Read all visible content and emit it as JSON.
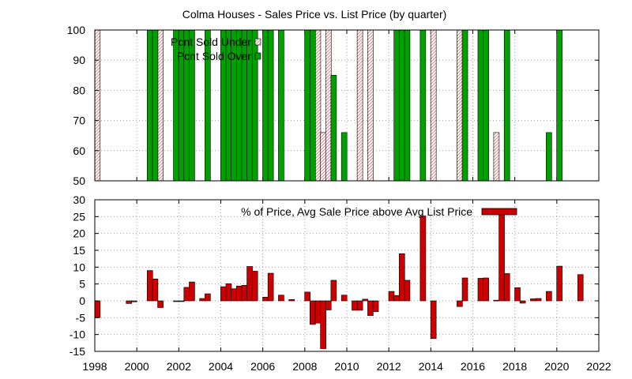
{
  "figure_title": "Colma Houses - Sales Price vs. List Price (by quarter)",
  "colors": {
    "green": "#00a000",
    "red": "#cc0000",
    "pink_hatch": "#e08080",
    "frame": "#000000",
    "grid": "#a0a0a0"
  },
  "chart_data": [
    {
      "type": "bar",
      "title": "Colma Houses - Sales Price vs. List Price (by quarter)",
      "xlim": [
        1998,
        2022
      ],
      "ylim": [
        50,
        100
      ],
      "grid": true,
      "legend_position": "top-left",
      "x_ticks": [],
      "y_ticks": [
        50,
        60,
        70,
        80,
        90,
        100
      ],
      "series": [
        {
          "name": "Pcnt Sold Under",
          "style": "hatched-pink",
          "bars": [
            {
              "x": 1998.125,
              "value": 100
            },
            {
              "x": 2001.125,
              "value": 100
            },
            {
              "x": 2008.625,
              "value": 100
            },
            {
              "x": 2008.875,
              "value": 66
            },
            {
              "x": 2009.125,
              "value": 100
            },
            {
              "x": 2010.625,
              "value": 100
            },
            {
              "x": 2011.125,
              "value": 100
            },
            {
              "x": 2014.125,
              "value": 100
            },
            {
              "x": 2015.375,
              "value": 100
            },
            {
              "x": 2017.125,
              "value": 66
            }
          ]
        },
        {
          "name": "Pcnt Sold Over",
          "style": "solid-green",
          "bars": [
            {
              "x": 2000.625,
              "value": 100
            },
            {
              "x": 2000.875,
              "value": 100
            },
            {
              "x": 2001.875,
              "value": 100
            },
            {
              "x": 2002.125,
              "value": 100
            },
            {
              "x": 2002.375,
              "value": 100
            },
            {
              "x": 2002.625,
              "value": 100
            },
            {
              "x": 2003.375,
              "value": 100
            },
            {
              "x": 2004.125,
              "value": 100
            },
            {
              "x": 2004.375,
              "value": 100
            },
            {
              "x": 2004.625,
              "value": 100
            },
            {
              "x": 2004.875,
              "value": 100
            },
            {
              "x": 2005.125,
              "value": 100
            },
            {
              "x": 2005.375,
              "value": 100
            },
            {
              "x": 2005.625,
              "value": 100
            },
            {
              "x": 2006.125,
              "value": 100
            },
            {
              "x": 2006.375,
              "value": 100
            },
            {
              "x": 2006.875,
              "value": 100
            },
            {
              "x": 2008.125,
              "value": 100
            },
            {
              "x": 2008.375,
              "value": 100
            },
            {
              "x": 2009.375,
              "value": 85
            },
            {
              "x": 2009.875,
              "value": 66
            },
            {
              "x": 2012.375,
              "value": 100
            },
            {
              "x": 2012.625,
              "value": 100
            },
            {
              "x": 2012.875,
              "value": 100
            },
            {
              "x": 2013.625,
              "value": 100
            },
            {
              "x": 2015.625,
              "value": 100
            },
            {
              "x": 2016.375,
              "value": 100
            },
            {
              "x": 2016.625,
              "value": 100
            },
            {
              "x": 2017.625,
              "value": 100
            },
            {
              "x": 2019.625,
              "value": 66
            },
            {
              "x": 2020.125,
              "value": 100
            }
          ]
        }
      ]
    },
    {
      "type": "bar",
      "title": "",
      "xlim": [
        1998,
        2022
      ],
      "ylim": [
        -15,
        30
      ],
      "grid": true,
      "legend_position": "top-right",
      "x_ticks": [
        1998,
        2000,
        2002,
        2004,
        2006,
        2008,
        2010,
        2012,
        2014,
        2016,
        2018,
        2020,
        2022
      ],
      "y_ticks": [
        -15,
        -10,
        -5,
        0,
        5,
        10,
        15,
        20,
        25,
        30
      ],
      "series": [
        {
          "name": "% of Price, Avg Sale Price above Avg List Price",
          "style": "solid-red",
          "bars": [
            {
              "x": 1998.125,
              "value": -5
            },
            {
              "x": 1999.625,
              "value": -0.8
            },
            {
              "x": 1999.875,
              "value": -0.3
            },
            {
              "x": 2000.625,
              "value": 9
            },
            {
              "x": 2000.875,
              "value": 6.5
            },
            {
              "x": 2001.125,
              "value": -2
            },
            {
              "x": 2001.875,
              "value": -0.2
            },
            {
              "x": 2002.125,
              "value": -0.2
            },
            {
              "x": 2002.375,
              "value": 4
            },
            {
              "x": 2002.625,
              "value": 5.6
            },
            {
              "x": 2003.125,
              "value": 0.7
            },
            {
              "x": 2003.375,
              "value": 2.1
            },
            {
              "x": 2004.125,
              "value": 4.2
            },
            {
              "x": 2004.375,
              "value": 5.1
            },
            {
              "x": 2004.625,
              "value": 3.6
            },
            {
              "x": 2004.875,
              "value": 4.4
            },
            {
              "x": 2005.125,
              "value": 4.6
            },
            {
              "x": 2005.375,
              "value": 10.2
            },
            {
              "x": 2005.625,
              "value": 8.8
            },
            {
              "x": 2006.125,
              "value": 1.1
            },
            {
              "x": 2006.375,
              "value": 8.2
            },
            {
              "x": 2006.875,
              "value": 1.7
            },
            {
              "x": 2007.375,
              "value": 0.4
            },
            {
              "x": 2008.125,
              "value": 2.6
            },
            {
              "x": 2008.375,
              "value": -7
            },
            {
              "x": 2008.625,
              "value": -6.6
            },
            {
              "x": 2008.875,
              "value": -14.2
            },
            {
              "x": 2009.125,
              "value": -2.7
            },
            {
              "x": 2009.375,
              "value": 6.1
            },
            {
              "x": 2009.875,
              "value": 1.7
            },
            {
              "x": 2010.375,
              "value": -2.8
            },
            {
              "x": 2010.625,
              "value": -2.8
            },
            {
              "x": 2010.875,
              "value": 0.5
            },
            {
              "x": 2011.125,
              "value": -4.4
            },
            {
              "x": 2011.375,
              "value": -3.2
            },
            {
              "x": 2012.125,
              "value": 2.8
            },
            {
              "x": 2012.375,
              "value": 1.6
            },
            {
              "x": 2012.625,
              "value": 14
            },
            {
              "x": 2012.875,
              "value": 6.1
            },
            {
              "x": 2013.625,
              "value": 25.2
            },
            {
              "x": 2014.125,
              "value": -11.2
            },
            {
              "x": 2015.375,
              "value": -1.7
            },
            {
              "x": 2015.625,
              "value": 6.8
            },
            {
              "x": 2016.375,
              "value": 6.7
            },
            {
              "x": 2016.625,
              "value": 6.8
            },
            {
              "x": 2017.125,
              "value": 0.2
            },
            {
              "x": 2017.375,
              "value": 26
            },
            {
              "x": 2017.625,
              "value": 8.1
            },
            {
              "x": 2018.125,
              "value": 3.9
            },
            {
              "x": 2018.375,
              "value": -0.7
            },
            {
              "x": 2018.875,
              "value": 0.6
            },
            {
              "x": 2019.125,
              "value": 0.7
            },
            {
              "x": 2019.625,
              "value": 2.8
            },
            {
              "x": 2020.125,
              "value": 10.3
            },
            {
              "x": 2021.125,
              "value": 7.8
            }
          ]
        }
      ]
    }
  ]
}
